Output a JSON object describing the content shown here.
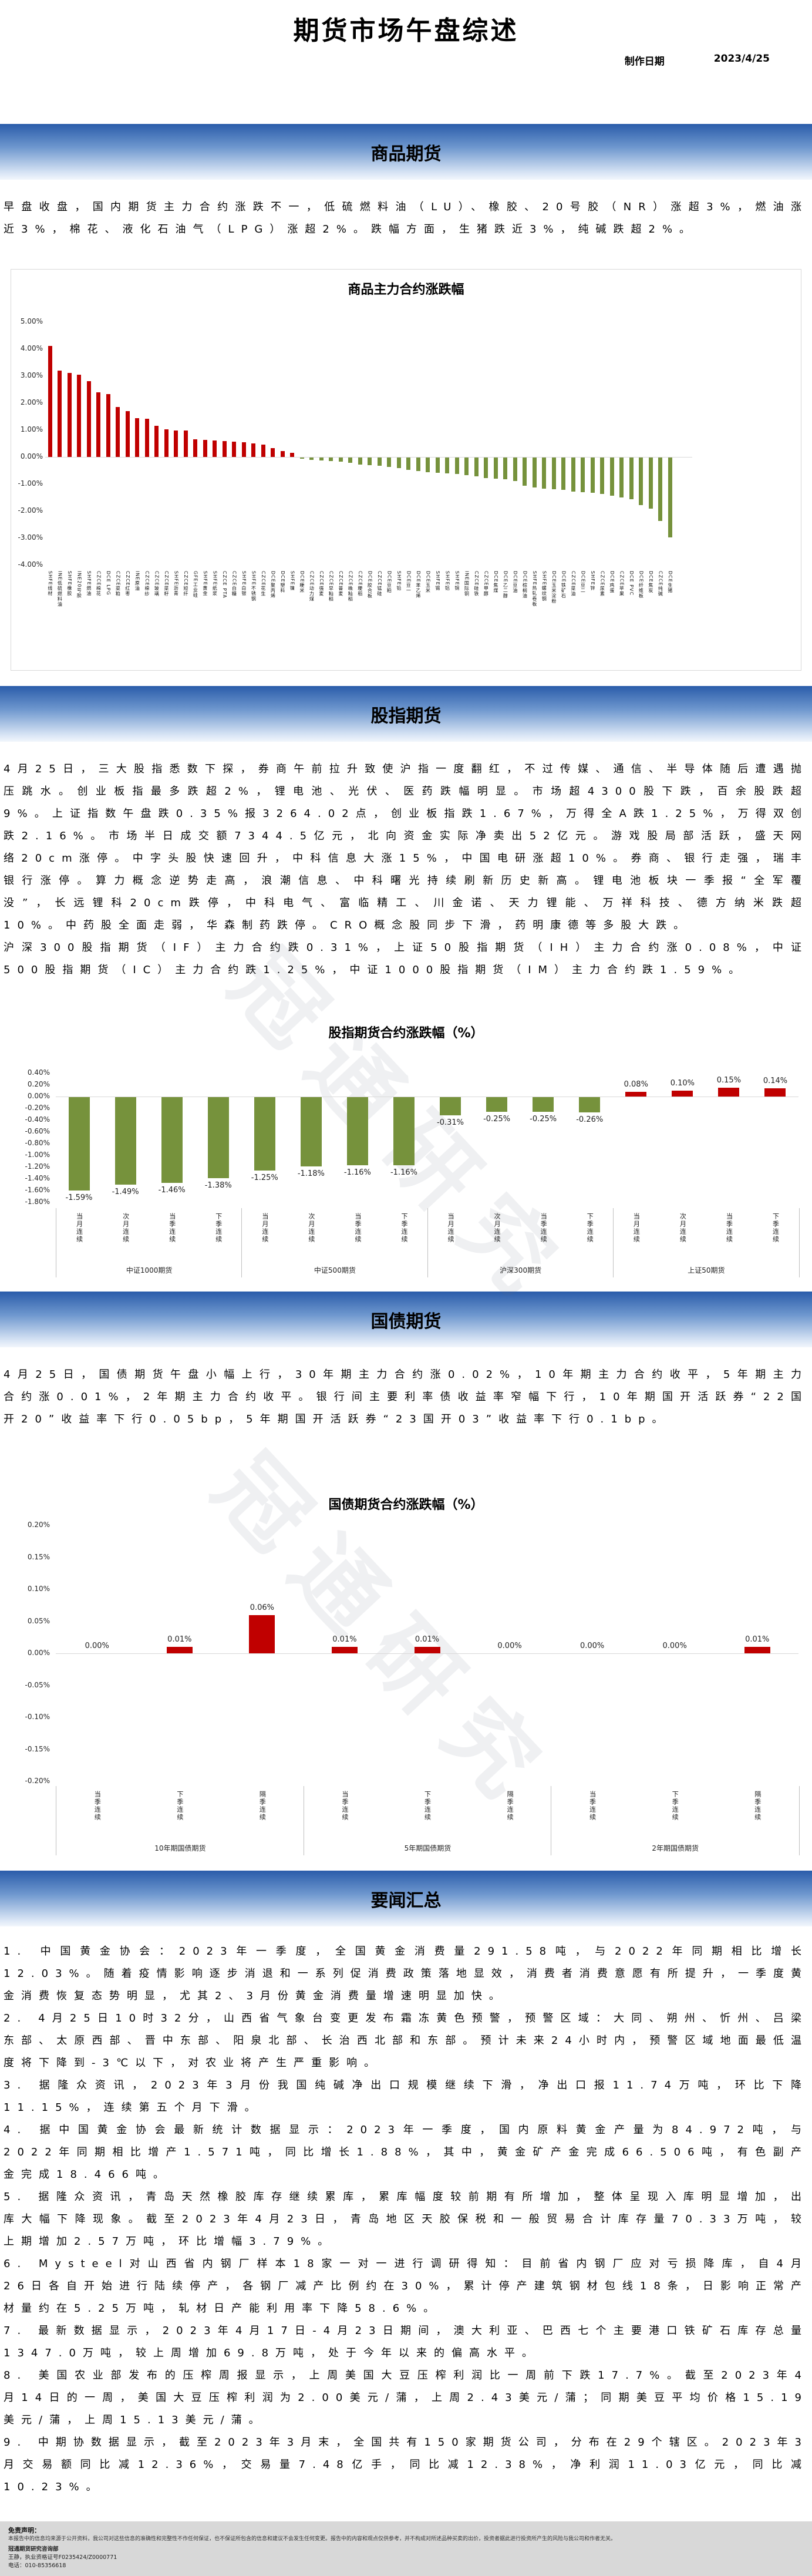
{
  "page": {
    "title": "期货市场午盘综述",
    "date_label": "制作日期",
    "date_value": "2023/4/25"
  },
  "watermark_text": "冠通研究",
  "colors": {
    "positive_bar": "#C00000",
    "negative_bar": "#76923C",
    "band_top": "#2A5CAA",
    "band_bottom": "#F2F6FC",
    "gridline": "#D9D9D9",
    "divider": "#BFBFBF"
  },
  "sections": {
    "commodity": {
      "title": "商品期货",
      "summary": "早盘收盘，国内期货主力合约涨跌不一，低硫燃料油（LU）、橡胶、20号胶（NR）涨超3%，燃油涨近3%，棉花、液化石油气（LPG）涨超2%。跌幅方面，生猪跌近3%，纯碱跌超2%。"
    },
    "equity_index": {
      "title": "股指期货",
      "summary": "4月25日，三大股指悉数下探，券商午前拉升致使沪指一度翻红，不过传媒、通信、半导体随后遭遇抛压跳水。创业板指最多跌超2%，锂电池、光伏、医药跌幅明显。市场超4300股下跌，百余股跌超9%。上证指数午盘跌0.35%报3264.02点，创业板指跌1.67%，万得全A跌1.25%，万得双创跌2.16%。市场半日成交额7344.5亿元，北向资金实际净卖出52亿元。游戏股局部活跃，盛天网络20cm涨停。中字头股快速回升，中科信息大涨15%，中国电研涨超10%。券商、银行走强，瑞丰银行涨停。算力概念逆势走高，浪潮信息、中科曙光持续刷新历史新高。锂电池板块一季报“全军覆没”，长远锂科20cm跌停，中科电气、富临精工、川金诺、天力锂能、万祥科技、德方纳米跌超10%。中药股全面走弱，华森制药跌停。CRO概念股同步下滑，药明康德等多股大跌。",
      "futures_summary": "沪深300股指期货（IF）主力合约跌0.31%，上证50股指期货（IH）主力合约涨0.08%，中证500股指期货（IC）主力合约跌1.25%，中证1000股指期货（IM）主力合约跌1.59%。"
    },
    "bond": {
      "title": "国债期货",
      "summary": "4月25日，国债期货午盘小幅上行，30年期主力合约涨0.02%，10年期主力合约收平，5年期主力合约涨0.01%，2年期主力合约收平。银行间主要利率债收益率窄幅下行，10年期国开活跃券“22国开20”收益率下行0.05bp，5年期国开活跃券“23国开03”收益率下行0.1bp。"
    },
    "news": {
      "title": "要闻汇总",
      "items": [
        "1. 中国黄金协会：2023年一季度，全国黄金消费量291.58吨，与2022年同期相比增长12.03%。随着疫情影响逐步消退和一系列促消费政策落地显效，消费者消费意愿有所提升，一季度黄金消费恢复态势明显，尤其2、3月份黄金消费量增速明显加快。",
        "2. 4月25日10时32分，山西省气象台变更发布霜冻黄色预警，预警区域：大同、朔州、忻州、吕梁东部、太原西部、晋中东部、阳泉北部、长治西北部和东部。预计未来24小时内，预警区域地面最低温度将下降到-3℃以下，对农业将产生严重影响。",
        "3. 据隆众资讯，2023年3月份我国纯碱净出口规模继续下滑，净出口报11.74万吨，环比下降11.15%，连续第五个月下滑。",
        "4. 据中国黄金协会最新统计数据显示：2023年一季度，国内原料黄金产量为84.972吨，与2022年同期相比增产1.571吨，同比增长1.88%，其中，黄金矿产金完成66.506吨，有色副产金完成18.466吨。",
        "5. 据隆众资讯，青岛天然橡胶库存继续累库，累库幅度较前期有所增加，整体呈现入库明显增加，出库大幅下降现象。截至2023年4月23日，青岛地区天胶保税和一般贸易合计库存量70.33万吨，较上期增加2.57万吨，环比增幅3.79%。",
        "6. Mysteel对山西省内钢厂样本18家一对一进行调研得知：目前省内钢厂应对亏损降库，自4月26日各自开始进行陆续停产，各钢厂减产比例约在30%，累计停产建筑钢材包线18条，日影响正常产材量约在5.25万吨，轧材日产能利用率下降58.6%。",
        "7. 最新数据显示，2023年4月17日-4月23日期间，澳大利亚、巴西七个主要港口铁矿石库存总量1347.0万吨，较上周增加69.8万吨，处于今年以来的偏高水平。",
        "8. 美国农业部发布的压榨周报显示，上周美国大豆压榨利润比一周前下跌17.7%。截至2023年4月14日的一周，美国大豆压榨利润为2.00美元/蒲，上周2.43美元/蒲；同期美豆平均价格15.19美元/蒲，上周15.13美元/蒲。",
        "9. 中期协数据显示，截至2023年3月末，全国共有150家期货公司，分布在29个辖区。2023年3月交易额同比减12.36%，交易量7.48亿手，同比减12.38%，净利润11.03亿元，同比减10.23%。"
      ]
    }
  },
  "chart_data": [
    {
      "type": "bar",
      "title": "商品主力合约涨跌幅",
      "unit": "%",
      "ylim": [
        -4,
        5
      ],
      "yticks": [
        5,
        4,
        3,
        2,
        1,
        0,
        -1,
        -2,
        -3,
        -4
      ],
      "grid": false,
      "legend_position": "none",
      "bar_colors": {
        "positive": "#C00000",
        "negative": "#76923C"
      },
      "categories": [
        "SHFE线材",
        "INE低硫燃料油",
        "SHFE橡胶",
        "INE20号胶",
        "SHFE燃油",
        "CZCE棉花",
        "DCE LPG",
        "CZCE菜粕",
        "CZCE红枣",
        "INE原油",
        "CZCE棉纱",
        "CZCE玻璃",
        "CZCE菜籽",
        "SHFE沥青",
        "CZCE短纤",
        "GFE工业硅",
        "SHFE黄金",
        "SHFE纸浆",
        "CZCE PTA",
        "CZCE白糖",
        "SHFE白银",
        "SHFE不锈钢",
        "CZCE花生",
        "DCE聚丙烯",
        "DCE塑料",
        "SHFE镍",
        "DCE粳米",
        "CZCE动力煤",
        "CZCE强麦",
        "CZCE早籼稻",
        "CZCE普麦",
        "CZCE晚籼稻",
        "CZCE粳稻",
        "DCE胶合板",
        "CZCE锰硅",
        "DCE豆粕",
        "SHFE铅",
        "DCE豆一",
        "DCE苯乙烯",
        "DCE玉米",
        "SHFE锡",
        "SHFE铝",
        "SHFE铜",
        "INE国际铜",
        "CZCE硅铁",
        "CZCE甲醇",
        "DCE焦煤",
        "DCE乙二醇",
        "DCE豆油",
        "DCE棕榈油",
        "SHFE热轧卷板",
        "SHFE螺纹钢",
        "DCE玉米淀粉",
        "DCE铁矿石",
        "CZCE菜油",
        "DCE豆二",
        "SHFE锌",
        "CZCE尿素",
        "DCE鸡蛋",
        "CZCE苹果",
        "DCE PVC",
        "DCE纤维板",
        "DCE焦炭",
        "CZCE纯碱",
        "DCE生猪"
      ],
      "values": [
        4.1,
        3.2,
        3.1,
        3.05,
        2.8,
        2.4,
        2.33,
        1.85,
        1.7,
        1.43,
        1.42,
        1.16,
        1.02,
        0.98,
        0.97,
        0.66,
        0.64,
        0.61,
        0.58,
        0.56,
        0.55,
        0.5,
        0.45,
        0.33,
        0.22,
        0.15,
        -0.05,
        -0.08,
        -0.1,
        -0.13,
        -0.15,
        -0.2,
        -0.25,
        -0.28,
        -0.3,
        -0.35,
        -0.4,
        -0.45,
        -0.5,
        -0.54,
        -0.56,
        -0.58,
        -0.6,
        -0.65,
        -0.7,
        -0.75,
        -0.78,
        -0.8,
        -0.88,
        -1.05,
        -1.1,
        -1.15,
        -1.18,
        -1.2,
        -1.25,
        -1.28,
        -1.3,
        -1.35,
        -1.42,
        -1.48,
        -1.55,
        -1.75,
        -1.9,
        -2.35,
        -2.95
      ]
    },
    {
      "type": "bar",
      "title": "股指期货合约涨跌幅（%）",
      "unit": "%",
      "ylim": [
        -1.8,
        0.4
      ],
      "yticks": [
        0.4,
        0.2,
        0,
        -0.2,
        -0.4,
        -0.6,
        -0.8,
        -1,
        -1.2,
        -1.4,
        -1.6,
        -1.8
      ],
      "grid": false,
      "legend_position": "none",
      "data_labels": true,
      "groups": [
        {
          "name": "中证1000期货",
          "categories": [
            "当月连续",
            "次月连续",
            "当季连续",
            "下季连续"
          ],
          "values": [
            -1.59,
            -1.49,
            -1.46,
            -1.38
          ]
        },
        {
          "name": "中证500期货",
          "categories": [
            "当月连续",
            "次月连续",
            "当季连续",
            "下季连续"
          ],
          "values": [
            -1.25,
            -1.18,
            -1.16,
            -1.16
          ]
        },
        {
          "name": "沪深300期货",
          "categories": [
            "当月连续",
            "次月连续",
            "当季连续",
            "下季连续"
          ],
          "values": [
            -0.31,
            -0.25,
            -0.25,
            -0.26
          ]
        },
        {
          "name": "上证50期货",
          "categories": [
            "当月连续",
            "次月连续",
            "当季连续",
            "下季连续"
          ],
          "values": [
            0.08,
            0.1,
            0.15,
            0.14
          ]
        }
      ]
    },
    {
      "type": "bar",
      "title": "国债期货合约涨跌幅（%）",
      "unit": "%",
      "ylim": [
        -0.2,
        0.2
      ],
      "yticks": [
        0.2,
        0.15,
        0.1,
        0.05,
        0,
        -0.05,
        -0.1,
        -0.15,
        -0.2
      ],
      "grid": false,
      "legend_position": "none",
      "data_labels": true,
      "groups": [
        {
          "name": "10年期国债期货",
          "categories": [
            "当季连续",
            "下季连续",
            "隔季连续"
          ],
          "values": [
            0.0,
            0.01,
            0.06
          ]
        },
        {
          "name": "5年期国债期货",
          "categories": [
            "当季连续",
            "下季连续",
            "隔季连续"
          ],
          "values": [
            0.01,
            0.01,
            0.0
          ]
        },
        {
          "name": "2年期国债期货",
          "categories": [
            "当季连续",
            "下季连续",
            "隔季连续"
          ],
          "values": [
            0.0,
            0.0,
            0.01
          ]
        }
      ]
    }
  ],
  "footer": {
    "disclaimer_label": "免责声明：",
    "disclaimer_text": "本报告中的信息均来源于公开资料，我公司对这些信息的准确性和完整性不作任何保证，也不保证所包含的信息和建议不会发生任何变更。报告中的内容和观点仅供参考，并不构成对所述品种买卖的出价，投资者据此进行投资所产生的风险与我公司和作者无关。",
    "dept": "冠通期货研究咨询部",
    "analyst": "王静，执业资格证号F0235424/Z0000771",
    "phone": "电话：010-85356618"
  }
}
